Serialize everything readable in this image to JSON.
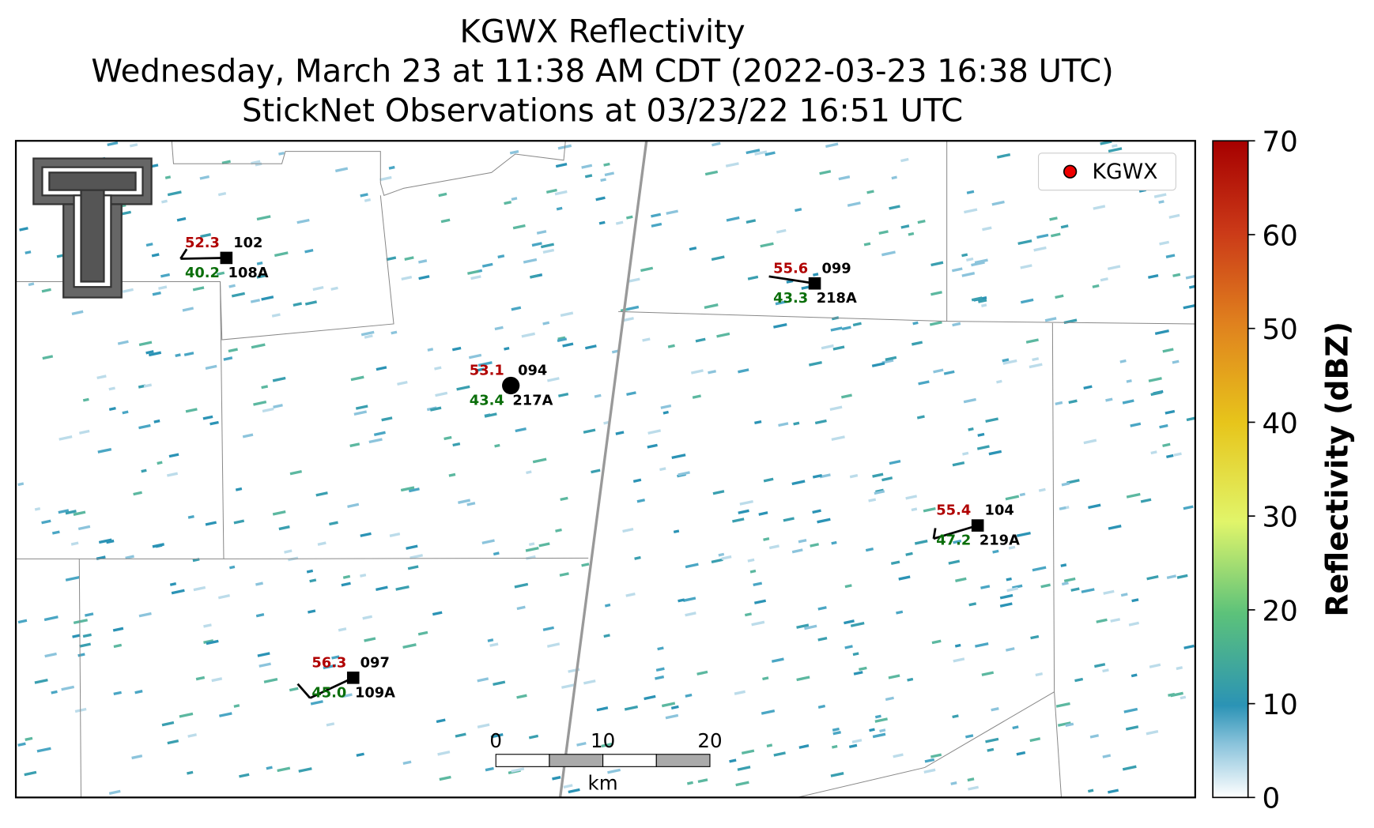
{
  "title": [
    "KGWX Reflectivity",
    "Wednesday, March 23 at 11:38 AM CDT (2022-03-23 16:38 UTC)",
    "StickNet Observations at 03/23/22 16:51 UTC"
  ],
  "map": {
    "stations": [
      {
        "temperature": "52.3",
        "dewpoint": "40.2",
        "sticknet_id": "102",
        "site_id": "108A"
      },
      {
        "temperature": "55.6",
        "dewpoint": "43.3",
        "sticknet_id": "099",
        "site_id": "218A"
      },
      {
        "temperature": "53.1",
        "dewpoint": "43.4",
        "sticknet_id": "094",
        "site_id": "217A"
      },
      {
        "temperature": "55.4",
        "dewpoint": "47.2",
        "sticknet_id": "104",
        "site_id": "219A"
      },
      {
        "temperature": "56.3",
        "dewpoint": "45.0",
        "sticknet_id": "097",
        "site_id": "109A"
      }
    ],
    "legend": {
      "label": "KGWX"
    },
    "scale_bar": {
      "ticks": [
        0,
        10,
        20
      ],
      "unit": "km"
    }
  },
  "colorbar": {
    "label": "Reflectivity (dBZ)",
    "range": [
      0,
      70
    ],
    "ticks": [
      0,
      10,
      20,
      30,
      40,
      50,
      60,
      70
    ]
  }
}
